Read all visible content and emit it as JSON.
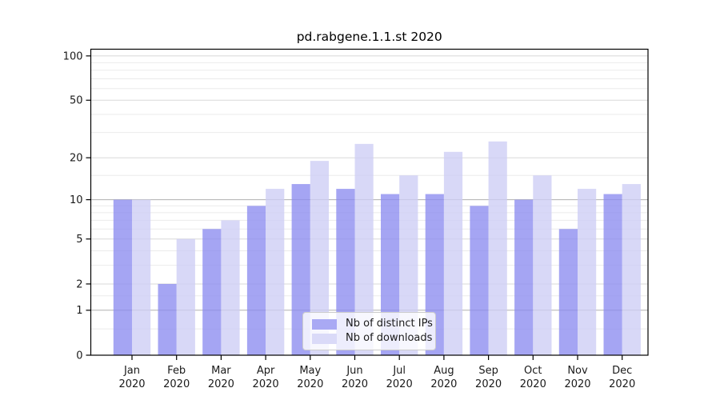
{
  "figure": {
    "background": "#ffffff"
  },
  "chart_data": {
    "type": "bar",
    "title": "pd.rabgene.1.1.st 2020",
    "categories": [
      "Jan",
      "Feb",
      "Mar",
      "Apr",
      "May",
      "Jun",
      "Jul",
      "Aug",
      "Sep",
      "Oct",
      "Nov",
      "Dec"
    ],
    "category_year": "2020",
    "series": [
      {
        "name": "Nb of distinct IPs",
        "values": [
          10,
          2,
          6,
          9,
          13,
          12,
          11,
          11,
          9,
          10,
          6,
          11
        ],
        "color_display": "#a9a9f4",
        "color_base": "#8c8cf0"
      },
      {
        "name": "Nb of downloads",
        "values": [
          10,
          5,
          7,
          12,
          19,
          25,
          15,
          22,
          26,
          15,
          12,
          13
        ],
        "color_display": "#dadaf8",
        "color_base": "#cdcdf5"
      }
    ],
    "y_axis": {
      "scale": "log1p",
      "top_value": 111,
      "major_ticks": [
        0,
        1,
        2,
        5,
        10,
        20,
        50,
        100
      ],
      "major_tick_labels": [
        "0",
        "1",
        "2",
        "5",
        "10",
        "20",
        "50",
        "100"
      ],
      "emphasized_ticks": [
        1,
        10
      ],
      "minor_ticks": [
        0.5,
        1.5,
        3,
        4,
        6,
        7,
        8,
        9,
        15,
        30,
        40,
        60,
        70,
        80,
        90
      ]
    },
    "x_axis": {
      "tick_labels_line1": [
        "Jan",
        "Feb",
        "Mar",
        "Apr",
        "May",
        "Jun",
        "Jul",
        "Aug",
        "Sep",
        "Oct",
        "Nov",
        "Dec"
      ],
      "tick_labels_line2": [
        "2020",
        "2020",
        "2020",
        "2020",
        "2020",
        "2020",
        "2020",
        "2020",
        "2020",
        "2020",
        "2020",
        "2020"
      ]
    },
    "legend": {
      "position": "lower center inside",
      "entries": [
        "Nb of distinct IPs",
        "Nb of downloads"
      ]
    },
    "grid": true,
    "colors": {
      "grid_major_emph": "#b0b0b0",
      "grid_major": "#d8d8d8",
      "grid_minor": "#ebebeb",
      "spine": "#000000",
      "text": "#1a1a1a"
    }
  }
}
